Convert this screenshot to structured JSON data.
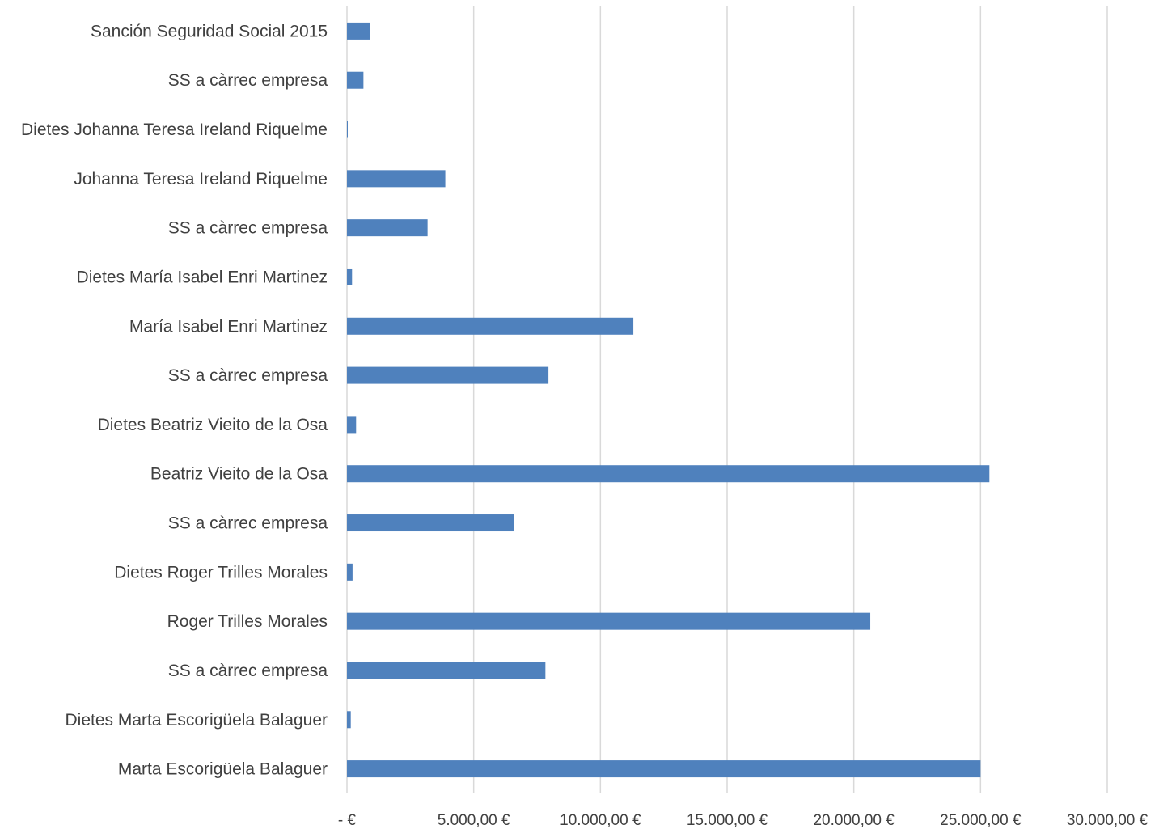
{
  "chart_data": {
    "type": "bar",
    "orientation": "horizontal",
    "categories": [
      "Sanción Seguridad Social 2015",
      "SS a càrrec empresa",
      "Dietes Johanna Teresa Ireland Riquelme",
      "Johanna Teresa Ireland Riquelme",
      "SS a càrrec empresa",
      "Dietes María Isabel Enri Martinez",
      "María Isabel Enri Martinez",
      "SS a càrrec empresa",
      "Dietes Beatriz Vieito de la Osa",
      "Beatriz Vieito de la Osa",
      "SS a càrrec empresa",
      "Dietes Roger Trilles Morales",
      "Roger Trilles Morales",
      "SS a càrrec empresa",
      "Dietes Marta Escorigüela Balaguer",
      "Marta Escorigüela Balaguer"
    ],
    "values": [
      920,
      650,
      30,
      3880,
      3180,
      200,
      11300,
      7950,
      360,
      25350,
      6600,
      220,
      20650,
      7830,
      150,
      25000
    ],
    "xlim": [
      0,
      30000
    ],
    "x_ticks": [
      0,
      5000,
      10000,
      15000,
      20000,
      25000,
      30000
    ],
    "x_tick_labels": [
      "-  €",
      "5.000,00 €",
      "10.000,00 €",
      "15.000,00 €",
      "20.000,00 €",
      "25.000,00 €",
      "30.000,00 €"
    ],
    "title": "",
    "xlabel": "",
    "ylabel": "",
    "grid": "vertical",
    "legend": "none",
    "colors": {
      "bar": "#4f81bd",
      "grid": "#d9d9d9",
      "text": "#404040"
    }
  }
}
